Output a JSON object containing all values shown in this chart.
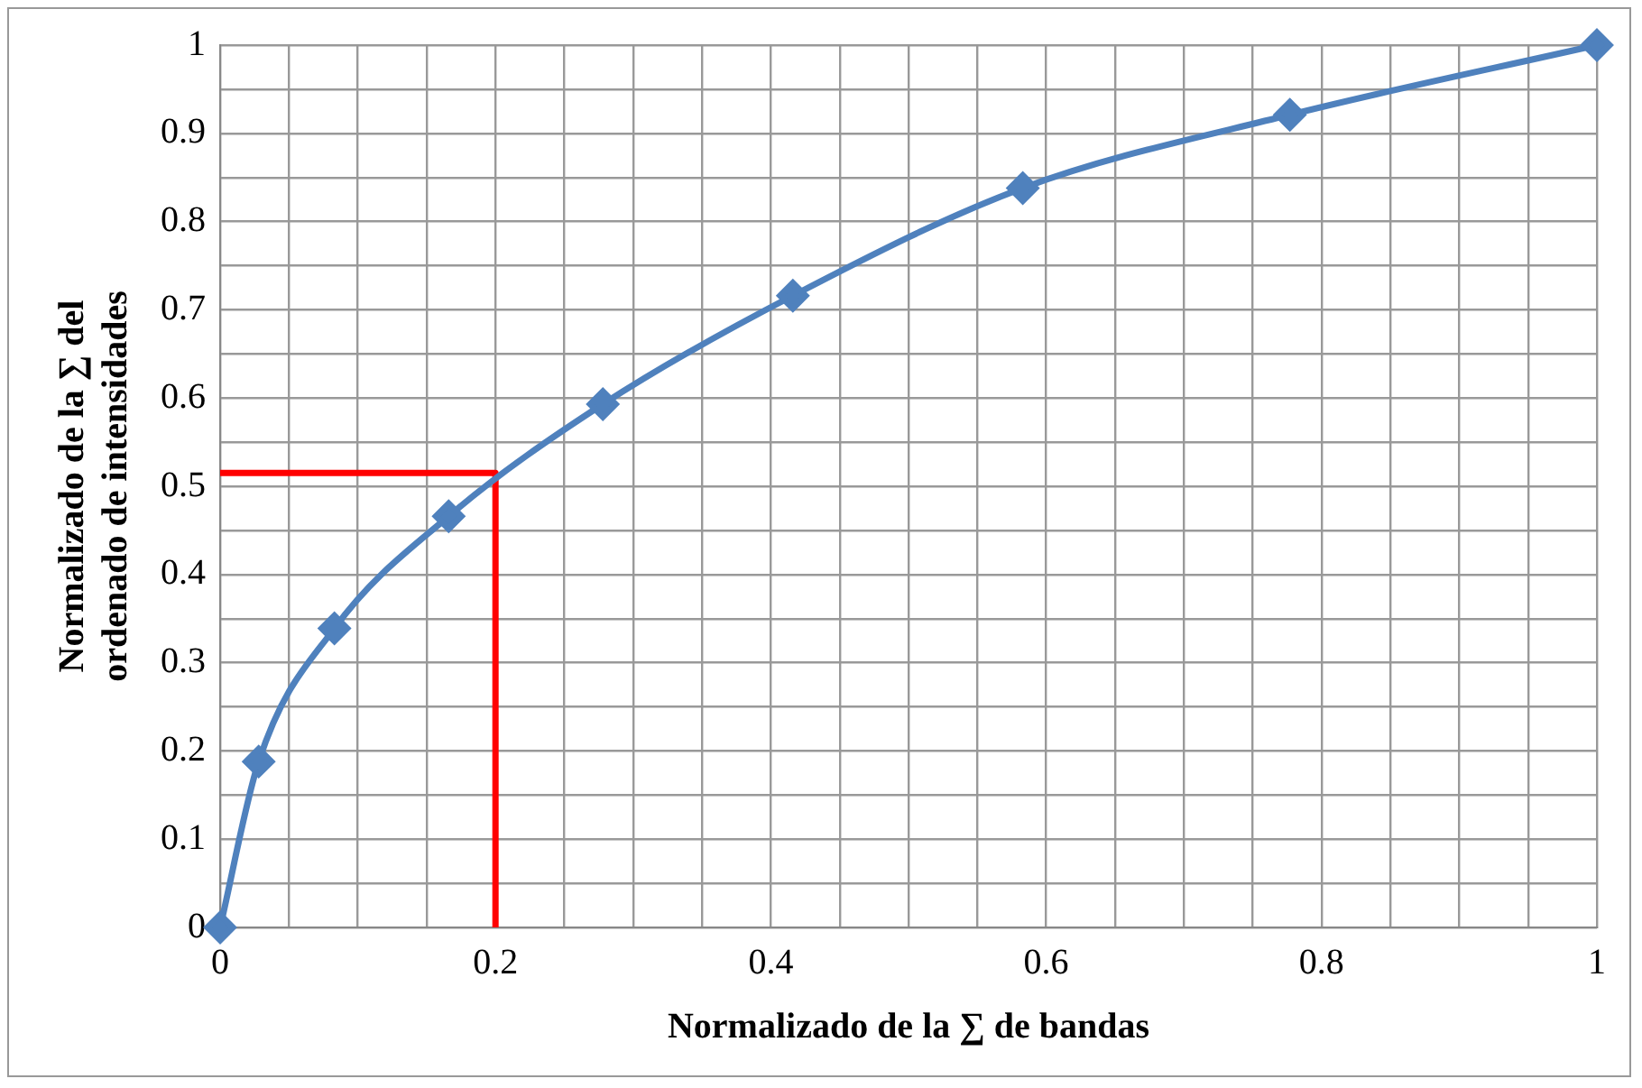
{
  "chart_data": {
    "type": "line",
    "xlabel": "Normalizado de la ∑ de bandas",
    "ylabel": "Normalizado de la ∑ del\nordenado de intensidades",
    "xlim": [
      0,
      1
    ],
    "ylim": [
      0,
      1
    ],
    "xticks": [
      0,
      {
        "value": 0.05,
        "label": null
      },
      {
        "value": 0.1,
        "label": null
      },
      {
        "value": 0.15,
        "label": null
      },
      {
        "value": 0.2,
        "label": "0.2"
      },
      {
        "value": 0.25,
        "label": null
      },
      {
        "value": 0.3,
        "label": null
      },
      {
        "value": 0.35,
        "label": null
      },
      {
        "value": 0.4,
        "label": "0.4"
      },
      {
        "value": 0.45,
        "label": null
      },
      {
        "value": 0.5,
        "label": null
      },
      {
        "value": 0.55,
        "label": null
      },
      {
        "value": 0.6,
        "label": "0.6"
      },
      {
        "value": 0.65,
        "label": null
      },
      {
        "value": 0.7,
        "label": null
      },
      {
        "value": 0.75,
        "label": null
      },
      {
        "value": 0.8,
        "label": "0.8"
      },
      {
        "value": 0.85,
        "label": null
      },
      {
        "value": 0.9,
        "label": null
      },
      {
        "value": 0.95,
        "label": null
      },
      1
    ],
    "yticks": [
      0,
      {
        "value": 0.05,
        "label": null
      },
      {
        "value": 0.1,
        "label": "0.1"
      },
      {
        "value": 0.15,
        "label": null
      },
      {
        "value": 0.2,
        "label": "0.2"
      },
      {
        "value": 0.25,
        "label": null
      },
      {
        "value": 0.3,
        "label": "0.3"
      },
      {
        "value": 0.35,
        "label": null
      },
      {
        "value": 0.4,
        "label": "0.4"
      },
      {
        "value": 0.45,
        "label": null
      },
      {
        "value": 0.5,
        "label": "0.5"
      },
      {
        "value": 0.55,
        "label": null
      },
      {
        "value": 0.6,
        "label": "0.6"
      },
      {
        "value": 0.65,
        "label": null
      },
      {
        "value": 0.7,
        "label": "0.7"
      },
      {
        "value": 0.75,
        "label": null
      },
      {
        "value": 0.8,
        "label": "0.8"
      },
      {
        "value": 0.85,
        "label": null
      },
      {
        "value": 0.9,
        "label": "0.9"
      },
      {
        "value": 0.95,
        "label": null
      },
      1
    ],
    "grid": true,
    "legend": false,
    "series": [
      {
        "color": "#4f81bd",
        "marker": "diamond",
        "x": [
          0,
          0.028,
          0.083,
          0.166,
          0.278,
          0.416,
          0.583,
          0.777,
          1
        ],
        "values": [
          0,
          0.188,
          0.339,
          0.466,
          0.593,
          0.716,
          0.838,
          0.921,
          1
        ]
      },
      {
        "color": "#ff0000",
        "marker": "none",
        "x": [
          0,
          0.2,
          0.2
        ],
        "values": [
          0.515,
          0.515,
          0
        ]
      }
    ]
  }
}
